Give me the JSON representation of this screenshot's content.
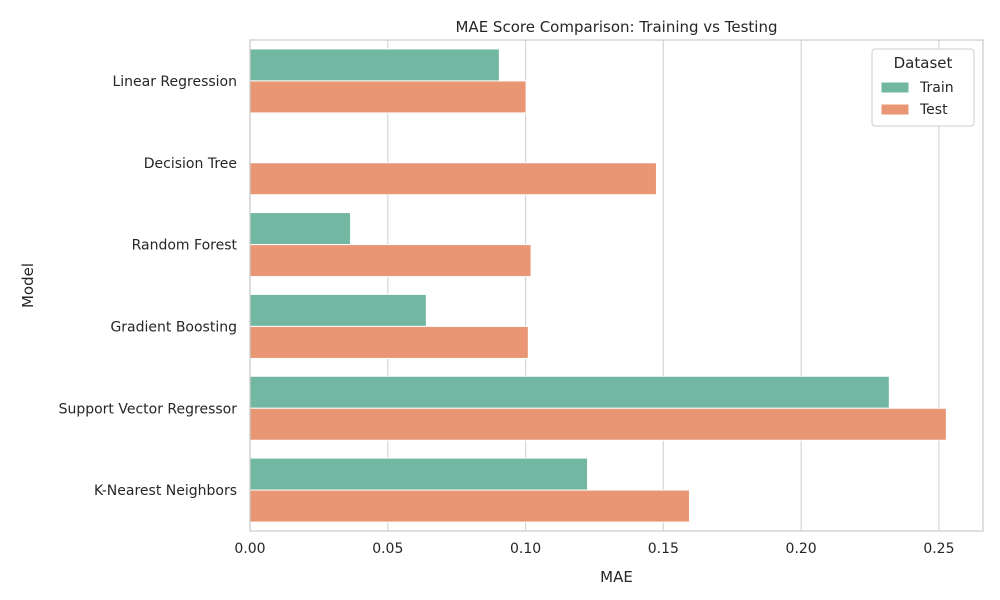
{
  "chart_data": {
    "type": "bar",
    "orientation": "horizontal",
    "title": "MAE Score Comparison: Training vs Testing",
    "xlabel": "MAE",
    "ylabel": "Model",
    "categories": [
      "Linear Regression",
      "Decision Tree",
      "Random Forest",
      "Gradient Boosting",
      "Support Vector Regressor",
      "K-Nearest Neighbors"
    ],
    "series": [
      {
        "name": "Train",
        "color": "#72b7a1",
        "values": [
          0.0905,
          0.0,
          0.0365,
          0.064,
          0.232,
          0.1225
        ]
      },
      {
        "name": "Test",
        "color": "#e99675",
        "values": [
          0.1002,
          0.1475,
          0.102,
          0.101,
          0.2527,
          0.1595
        ]
      }
    ],
    "xlim": [
      0,
      0.266
    ],
    "xticks": [
      "0.00",
      "0.05",
      "0.10",
      "0.15",
      "0.20",
      "0.25"
    ],
    "xtick_values": [
      0,
      0.05,
      0.1,
      0.15,
      0.2,
      0.25
    ],
    "grid": true,
    "legend": {
      "title": "Dataset",
      "placement": "top-right"
    }
  }
}
